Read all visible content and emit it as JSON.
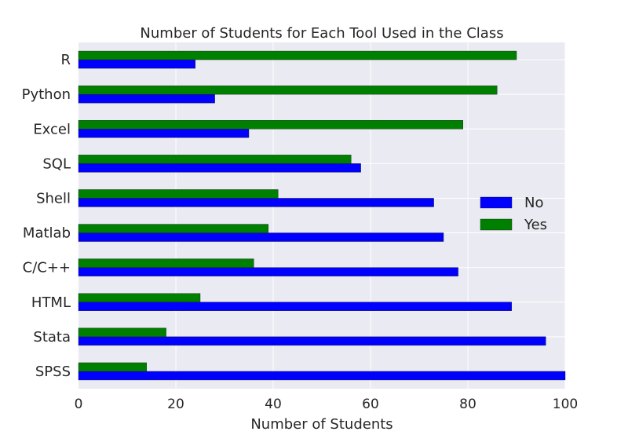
{
  "chart_data": {
    "type": "bar",
    "orientation": "horizontal",
    "title": "Number of Students for Each Tool Used in the Class",
    "xlabel": "Number of Students",
    "ylabel": "",
    "xlim": [
      0,
      100
    ],
    "xticks": [
      0,
      20,
      40,
      60,
      80,
      100
    ],
    "grid": true,
    "legend_position": "right",
    "categories": [
      "SPSS",
      "Stata",
      "HTML",
      "C/C++",
      "Matlab",
      "Shell",
      "SQL",
      "Excel",
      "Python",
      "R"
    ],
    "series": [
      {
        "name": "No",
        "color": "#0000ff",
        "values": [
          100,
          96,
          89,
          78,
          75,
          73,
          58,
          35,
          28,
          24
        ]
      },
      {
        "name": "Yes",
        "color": "#008000",
        "values": [
          14,
          18,
          25,
          36,
          39,
          41,
          56,
          79,
          86,
          90
        ]
      }
    ],
    "colors": {
      "plot_background": "#eaeaf2",
      "grid": "#ffffff"
    }
  }
}
